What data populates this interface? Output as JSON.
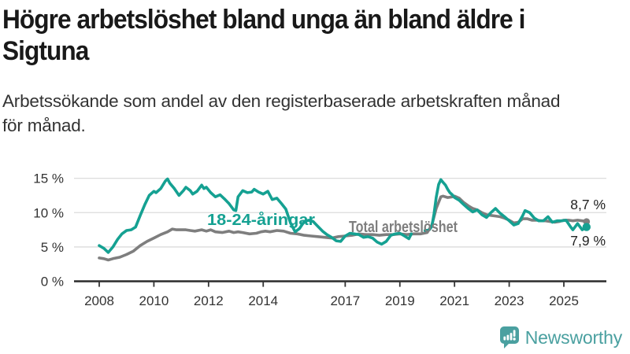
{
  "header": {
    "title_lines": [
      "Högre arbetslöshet bland unga än bland äldre i",
      "Sigtuna"
    ],
    "subtitle_lines": [
      "Arbetssökande som andel av den registerbaserade arbetskraften månad",
      "för månad."
    ]
  },
  "branding": {
    "logo_text": "Newsworthy",
    "logo_icon": "bar-chart-speech-bubble-icon",
    "accent_color": "#4aa0a0"
  },
  "chart_data": {
    "type": "line",
    "title": "Högre arbetslöshet bland unga än bland äldre i Sigtuna",
    "subtitle": "Arbetssökande som andel av den registerbaserade arbetskraften månad för månad.",
    "xlabel": "",
    "ylabel": "",
    "x_unit": "year, monthly observations",
    "xlim": [
      2007.1,
      2026.6
    ],
    "ylim": [
      0,
      16.5
    ],
    "grid": "horizontal",
    "legend_position": "inline-labels",
    "x_ticks": [
      2008,
      2010,
      2012,
      2014,
      2017,
      2019,
      2021,
      2023,
      2025
    ],
    "x_tick_labels": [
      "2008",
      "2010",
      "2012",
      "2014",
      "2017",
      "2019",
      "2021",
      "2023",
      "2025"
    ],
    "y_ticks": [
      0,
      5,
      10,
      15
    ],
    "y_tick_labels": [
      "0 %",
      "5 %",
      "10 %",
      "15 %"
    ],
    "label_color": "#333333",
    "end_label_color": "#222222",
    "series": [
      {
        "name": "Total arbetslöshet",
        "color": "#7e7e7e",
        "end_label": "8,7 %",
        "end_value": 8.7,
        "points": [
          [
            2008.0,
            3.4
          ],
          [
            2008.17,
            3.3
          ],
          [
            2008.33,
            3.1
          ],
          [
            2008.5,
            3.3
          ],
          [
            2008.75,
            3.5
          ],
          [
            2009.0,
            3.9
          ],
          [
            2009.25,
            4.4
          ],
          [
            2009.5,
            5.2
          ],
          [
            2009.75,
            5.8
          ],
          [
            2010.0,
            6.3
          ],
          [
            2010.25,
            6.8
          ],
          [
            2010.5,
            7.2
          ],
          [
            2010.67,
            7.6
          ],
          [
            2010.83,
            7.5
          ],
          [
            2011.0,
            7.5
          ],
          [
            2011.17,
            7.5
          ],
          [
            2011.33,
            7.4
          ],
          [
            2011.5,
            7.3
          ],
          [
            2011.75,
            7.5
          ],
          [
            2011.92,
            7.3
          ],
          [
            2012.08,
            7.5
          ],
          [
            2012.25,
            7.2
          ],
          [
            2012.5,
            7.1
          ],
          [
            2012.75,
            7.3
          ],
          [
            2012.92,
            7.1
          ],
          [
            2013.08,
            7.2
          ],
          [
            2013.25,
            7.1
          ],
          [
            2013.5,
            6.9
          ],
          [
            2013.75,
            7.0
          ],
          [
            2013.92,
            7.2
          ],
          [
            2014.08,
            7.3
          ],
          [
            2014.25,
            7.2
          ],
          [
            2014.5,
            7.4
          ],
          [
            2014.75,
            7.3
          ],
          [
            2015.0,
            7.0
          ],
          [
            2015.25,
            6.9
          ],
          [
            2015.5,
            6.7
          ],
          [
            2015.75,
            6.6
          ],
          [
            2016.0,
            6.5
          ],
          [
            2016.25,
            6.4
          ],
          [
            2016.5,
            6.3
          ],
          [
            2016.75,
            6.5
          ],
          [
            2017.0,
            6.6
          ],
          [
            2017.25,
            6.7
          ],
          [
            2017.5,
            6.9
          ],
          [
            2017.75,
            6.8
          ],
          [
            2018.0,
            6.8
          ],
          [
            2018.25,
            6.7
          ],
          [
            2018.5,
            6.8
          ],
          [
            2018.75,
            6.8
          ],
          [
            2019.0,
            6.9
          ],
          [
            2019.25,
            6.8
          ],
          [
            2019.5,
            6.9
          ],
          [
            2019.75,
            6.9
          ],
          [
            2020.0,
            7.1
          ],
          [
            2020.17,
            8.2
          ],
          [
            2020.33,
            10.6
          ],
          [
            2020.5,
            12.3
          ],
          [
            2020.58,
            12.4
          ],
          [
            2020.75,
            12.2
          ],
          [
            2020.92,
            12.3
          ],
          [
            2021.0,
            12.4
          ],
          [
            2021.17,
            12.1
          ],
          [
            2021.33,
            11.5
          ],
          [
            2021.5,
            11.0
          ],
          [
            2021.67,
            10.6
          ],
          [
            2021.83,
            10.4
          ],
          [
            2022.0,
            10.0
          ],
          [
            2022.17,
            9.7
          ],
          [
            2022.33,
            9.6
          ],
          [
            2022.5,
            9.5
          ],
          [
            2022.67,
            9.4
          ],
          [
            2022.83,
            9.2
          ],
          [
            2023.0,
            8.9
          ],
          [
            2023.17,
            8.5
          ],
          [
            2023.33,
            8.6
          ],
          [
            2023.5,
            9.1
          ],
          [
            2023.67,
            9.1
          ],
          [
            2023.83,
            8.9
          ],
          [
            2024.0,
            8.9
          ],
          [
            2024.17,
            8.8
          ],
          [
            2024.33,
            8.8
          ],
          [
            2024.5,
            8.7
          ],
          [
            2024.67,
            8.6
          ],
          [
            2024.83,
            8.7
          ],
          [
            2025.0,
            8.9
          ],
          [
            2025.17,
            8.9
          ],
          [
            2025.33,
            8.8
          ],
          [
            2025.5,
            8.9
          ],
          [
            2025.67,
            8.8
          ],
          [
            2025.83,
            8.7
          ]
        ]
      },
      {
        "name": "18-24-åringar",
        "color": "#15a192",
        "end_label": "7,9 %",
        "end_value": 7.9,
        "points": [
          [
            2008.0,
            5.2
          ],
          [
            2008.17,
            4.8
          ],
          [
            2008.33,
            4.2
          ],
          [
            2008.5,
            5.0
          ],
          [
            2008.67,
            6.1
          ],
          [
            2008.83,
            6.9
          ],
          [
            2009.0,
            7.4
          ],
          [
            2009.17,
            7.5
          ],
          [
            2009.33,
            7.9
          ],
          [
            2009.5,
            9.6
          ],
          [
            2009.67,
            11.2
          ],
          [
            2009.83,
            12.5
          ],
          [
            2010.0,
            13.1
          ],
          [
            2010.08,
            12.9
          ],
          [
            2010.25,
            13.5
          ],
          [
            2010.42,
            14.6
          ],
          [
            2010.5,
            14.9
          ],
          [
            2010.58,
            14.3
          ],
          [
            2010.75,
            13.5
          ],
          [
            2010.92,
            12.5
          ],
          [
            2011.08,
            13.2
          ],
          [
            2011.17,
            13.7
          ],
          [
            2011.33,
            13.2
          ],
          [
            2011.42,
            12.7
          ],
          [
            2011.58,
            13.1
          ],
          [
            2011.75,
            14.0
          ],
          [
            2011.83,
            13.5
          ],
          [
            2011.92,
            13.7
          ],
          [
            2012.08,
            12.9
          ],
          [
            2012.25,
            12.3
          ],
          [
            2012.42,
            12.6
          ],
          [
            2012.58,
            12.0
          ],
          [
            2012.75,
            11.3
          ],
          [
            2012.92,
            10.4
          ],
          [
            2013.0,
            10.3
          ],
          [
            2013.08,
            12.3
          ],
          [
            2013.25,
            13.2
          ],
          [
            2013.42,
            12.9
          ],
          [
            2013.58,
            13.0
          ],
          [
            2013.67,
            13.4
          ],
          [
            2013.83,
            13.0
          ],
          [
            2014.0,
            12.7
          ],
          [
            2014.17,
            13.1
          ],
          [
            2014.33,
            11.9
          ],
          [
            2014.5,
            12.1
          ],
          [
            2014.67,
            11.3
          ],
          [
            2014.83,
            10.5
          ],
          [
            2015.0,
            8.5
          ],
          [
            2015.17,
            7.2
          ],
          [
            2015.33,
            7.7
          ],
          [
            2015.5,
            8.7
          ],
          [
            2015.67,
            8.9
          ],
          [
            2015.83,
            8.7
          ],
          [
            2016.0,
            8.0
          ],
          [
            2016.17,
            7.3
          ],
          [
            2016.33,
            6.8
          ],
          [
            2016.5,
            6.4
          ],
          [
            2016.67,
            5.9
          ],
          [
            2016.83,
            5.8
          ],
          [
            2017.0,
            6.6
          ],
          [
            2017.17,
            7.0
          ],
          [
            2017.33,
            6.9
          ],
          [
            2017.5,
            6.8
          ],
          [
            2017.67,
            6.4
          ],
          [
            2017.83,
            6.5
          ],
          [
            2018.0,
            6.3
          ],
          [
            2018.17,
            5.7
          ],
          [
            2018.33,
            5.4
          ],
          [
            2018.5,
            5.8
          ],
          [
            2018.67,
            6.7
          ],
          [
            2018.83,
            6.9
          ],
          [
            2019.0,
            7.0
          ],
          [
            2019.17,
            6.6
          ],
          [
            2019.33,
            6.2
          ],
          [
            2019.42,
            6.9
          ],
          [
            2019.6,
            null
          ],
          [
            2019.92,
            7.4
          ],
          [
            2020.08,
            7.5
          ],
          [
            2020.17,
            8.0
          ],
          [
            2020.25,
            9.8
          ],
          [
            2020.33,
            12.2
          ],
          [
            2020.42,
            14.1
          ],
          [
            2020.5,
            14.8
          ],
          [
            2020.58,
            14.4
          ],
          [
            2020.67,
            14.0
          ],
          [
            2020.75,
            13.4
          ],
          [
            2020.83,
            12.9
          ],
          [
            2020.92,
            12.6
          ],
          [
            2021.0,
            12.2
          ],
          [
            2021.17,
            11.8
          ],
          [
            2021.33,
            11.2
          ],
          [
            2021.5,
            10.6
          ],
          [
            2021.67,
            10.1
          ],
          [
            2021.83,
            10.4
          ],
          [
            2022.0,
            9.7
          ],
          [
            2022.17,
            9.3
          ],
          [
            2022.33,
            10.0
          ],
          [
            2022.5,
            10.6
          ],
          [
            2022.67,
            9.9
          ],
          [
            2022.83,
            9.4
          ],
          [
            2023.0,
            8.8
          ],
          [
            2023.17,
            8.2
          ],
          [
            2023.33,
            8.4
          ],
          [
            2023.5,
            9.6
          ],
          [
            2023.58,
            10.3
          ],
          [
            2023.75,
            10.0
          ],
          [
            2023.92,
            9.2
          ],
          [
            2024.08,
            8.8
          ],
          [
            2024.25,
            8.8
          ],
          [
            2024.42,
            9.4
          ],
          [
            2024.58,
            8.6
          ],
          [
            2024.75,
            8.8
          ],
          [
            2024.92,
            8.8
          ],
          [
            2025.08,
            8.9
          ],
          [
            2025.25,
            7.9
          ],
          [
            2025.33,
            7.5
          ],
          [
            2025.5,
            8.4
          ],
          [
            2025.67,
            7.5
          ],
          [
            2025.83,
            7.9
          ]
        ]
      }
    ]
  }
}
